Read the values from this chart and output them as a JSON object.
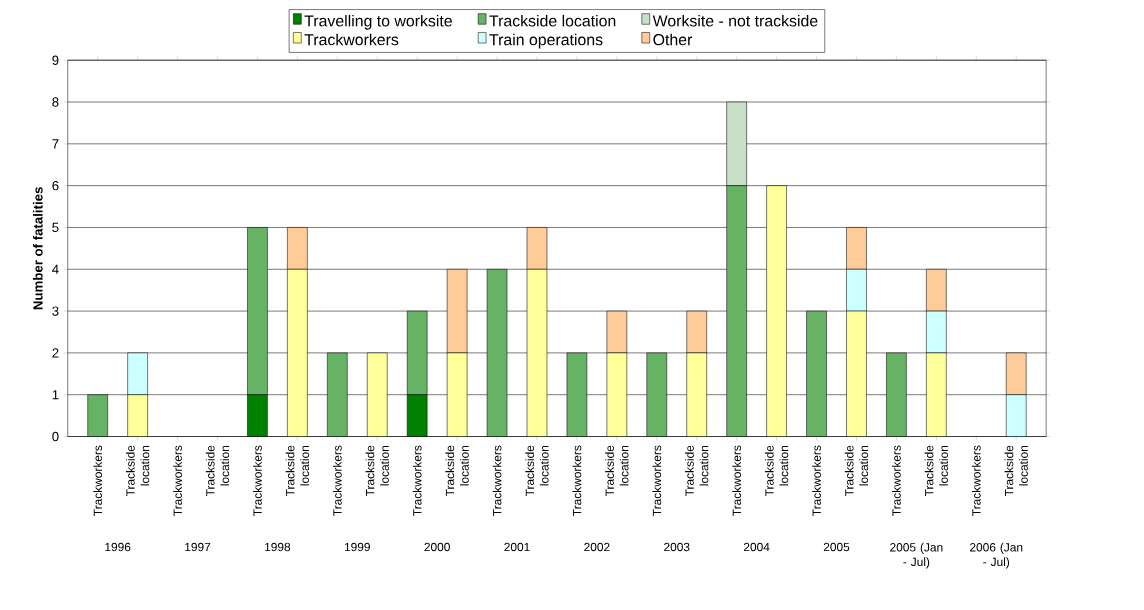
{
  "chart_data": {
    "type": "bar",
    "stacked": true,
    "ylabel": "Number of fatalities",
    "categories": [
      "Trackworkers",
      "Trackside location",
      "Trackworkers",
      "Trackside location",
      "Trackworkers",
      "Trackside location",
      "Trackworkers",
      "Trackside location",
      "Trackworkers",
      "Trackside location",
      "Trackworkers",
      "Trackside location",
      "Trackworkers",
      "Trackside location",
      "Trackworkers",
      "Trackside location",
      "Trackworkers",
      "Trackside location",
      "Trackworkers",
      "Trackside location",
      "Trackworkers",
      "Trackside location",
      "Trackworkers",
      "Trackside location"
    ],
    "series": [
      {
        "name": "Travelling to worksite",
        "color": "#008000",
        "values": [
          0,
          0,
          0,
          0,
          1,
          0,
          0,
          0,
          1,
          0,
          0,
          0,
          0,
          0,
          0,
          0,
          0,
          0,
          0,
          0,
          0,
          0,
          0,
          0
        ]
      },
      {
        "name": "Trackside location",
        "color": "#66b366",
        "values": [
          1,
          0,
          0,
          0,
          4,
          0,
          2,
          0,
          2,
          0,
          4,
          0,
          2,
          0,
          2,
          0,
          6,
          0,
          3,
          0,
          2,
          0,
          0,
          0
        ]
      },
      {
        "name": "Worksite - not trackside",
        "color": "#c8e0c8",
        "values": [
          0,
          0,
          0,
          0,
          0,
          0,
          0,
          0,
          0,
          0,
          0,
          0,
          0,
          0,
          0,
          0,
          2,
          0,
          0,
          0,
          0,
          0,
          0,
          0
        ]
      },
      {
        "name": "Trackworkers",
        "color": "#ffff99",
        "values": [
          0,
          1,
          0,
          0,
          0,
          4,
          0,
          2,
          0,
          2,
          0,
          4,
          0,
          2,
          0,
          2,
          0,
          6,
          0,
          3,
          0,
          2,
          0,
          0
        ]
      },
      {
        "name": "Train operations",
        "color": "#ccffff",
        "values": [
          0,
          1,
          0,
          0,
          0,
          0,
          0,
          0,
          0,
          0,
          0,
          0,
          0,
          0,
          0,
          0,
          0,
          0,
          0,
          1,
          0,
          1,
          0,
          1
        ]
      },
      {
        "name": "Other",
        "color": "#ffcc99",
        "values": [
          0,
          0,
          0,
          0,
          0,
          1,
          0,
          0,
          0,
          2,
          0,
          1,
          0,
          1,
          0,
          1,
          0,
          0,
          0,
          1,
          0,
          1,
          0,
          1
        ]
      }
    ],
    "annotations": [
      "1996",
      "1997",
      "1998",
      "1999",
      "2000",
      "2001",
      "2002",
      "2003",
      "2004",
      "2005",
      "2005 (Jan - Jul)",
      "2006 (Jan - Jul)"
    ],
    "ylim": [
      0,
      9
    ],
    "yticks": [
      0,
      1,
      2,
      3,
      4,
      5,
      6,
      7,
      8,
      9
    ],
    "grid": "y",
    "legend": "top"
  }
}
